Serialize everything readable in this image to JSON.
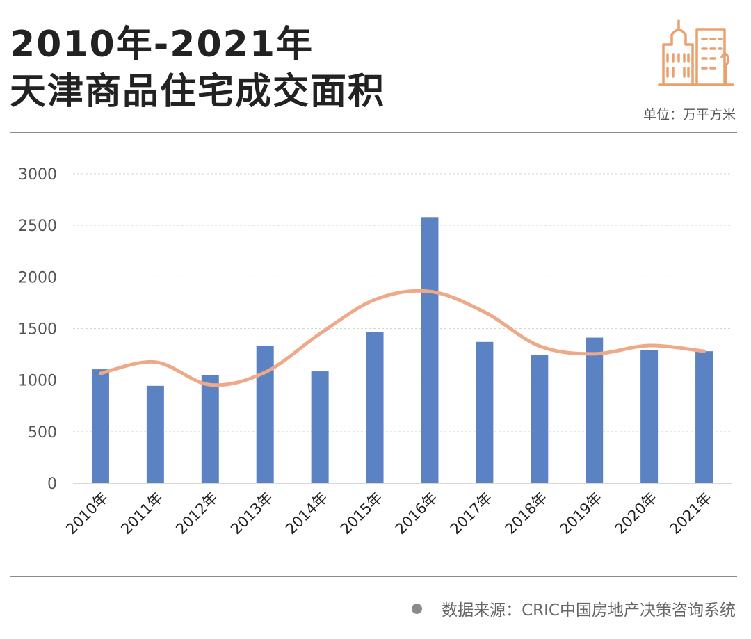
{
  "header": {
    "title_line1": "2010年-2021年",
    "title_line2": "天津商品住宅成交面积",
    "unit": "单位：万平方米"
  },
  "footer": {
    "source": "数据来源：CRIC中国房地产决策咨询系统"
  },
  "colors": {
    "bar": "#5b83c3",
    "trend": "#eea988",
    "logo": "#eba06e",
    "grid": "#d6d6d6",
    "axis": "#cccccc",
    "tick_text": "#555555"
  },
  "chart_data": {
    "type": "bar",
    "categories": [
      "2010年",
      "2011年",
      "2012年",
      "2013年",
      "2014年",
      "2015年",
      "2016年",
      "2017年",
      "2018年",
      "2019年",
      "2020年",
      "2021年"
    ],
    "series": [
      {
        "values": [
          1105,
          945,
          1048,
          1335,
          1085,
          1468,
          2580,
          1370,
          1245,
          1412,
          1288,
          1280
        ]
      }
    ],
    "trendline": {
      "type": "polynomial",
      "values": [
        1065,
        1175,
        955,
        1075,
        1450,
        1780,
        1860,
        1660,
        1330,
        1255,
        1335,
        1280
      ]
    },
    "ylim": [
      0,
      3000
    ],
    "yticks": [
      0,
      500,
      1000,
      1500,
      2000,
      2500,
      3000
    ],
    "grid": true,
    "legend": "none",
    "xlabel": "",
    "ylabel": ""
  }
}
